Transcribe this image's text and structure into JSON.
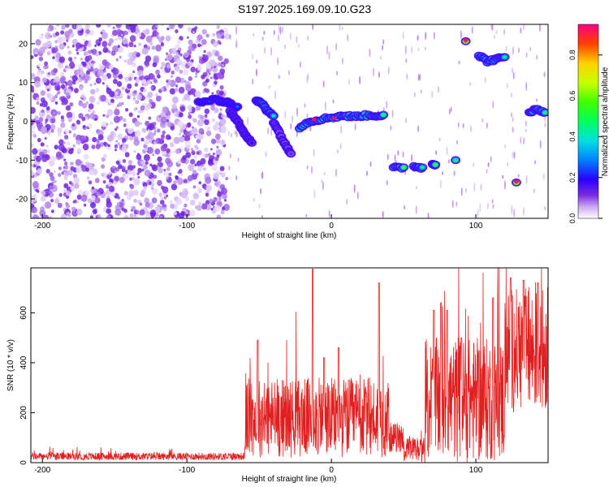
{
  "page": {
    "title": "S197.2025.169.09.10.G23"
  },
  "chart_data": [
    {
      "type": "heatmap",
      "xlabel": "Height of straight line (km)",
      "ylabel": "Frequency (Hz)",
      "xlim": [
        -208,
        150
      ],
      "ylim": [
        -25,
        25
      ],
      "xticks": [
        -200,
        -100,
        0,
        100
      ],
      "yticks": [
        -20,
        -10,
        0,
        10,
        20
      ],
      "colorbar": {
        "label": "Normalized spectral amplitude",
        "range": [
          0,
          0.95
        ],
        "ticks": [
          0.0,
          0.2,
          0.4,
          0.6,
          0.8
        ]
      },
      "background": {
        "noise_region_x": [
          -208,
          -72
        ],
        "noise_level": 0.05
      },
      "tracks": [
        {
          "x": [
            -92,
            -80,
            -72,
            -65
          ],
          "y": [
            5,
            5.5,
            5,
            3.5
          ],
          "amp": 0.3
        },
        {
          "x": [
            -70,
            -65,
            -60,
            -55
          ],
          "y": [
            2.5,
            0,
            -3,
            -5.5
          ],
          "amp": 0.2
        },
        {
          "x": [
            -52,
            -48,
            -44,
            -40
          ],
          "y": [
            5.5,
            4.5,
            2.5,
            1.5
          ],
          "amp": 0.45
        },
        {
          "x": [
            -40,
            -36,
            -32,
            -28
          ],
          "y": [
            0,
            -3,
            -6,
            -8
          ],
          "amp": 0.15
        },
        {
          "x": [
            -22,
            -15,
            -8,
            0,
            8,
            15,
            22,
            30,
            36
          ],
          "y": [
            -1.5,
            0,
            0.5,
            1,
            1.5,
            1.2,
            1.5,
            1.5,
            1.5
          ],
          "amp": 0.55
        },
        {
          "x": [
            43,
            50
          ],
          "y": [
            -12,
            -12
          ],
          "amp": 0.6
        },
        {
          "x": [
            57,
            63
          ],
          "y": [
            -11.5,
            -12
          ],
          "amp": 0.5
        },
        {
          "x": [
            70,
            72
          ],
          "y": [
            -11,
            -11
          ],
          "amp": 0.6
        },
        {
          "x": [
            86
          ],
          "y": [
            -10
          ],
          "amp": 0.55
        },
        {
          "x": [
            93
          ],
          "y": [
            21
          ],
          "amp": 0.9
        },
        {
          "x": [
            102,
            108,
            114,
            120
          ],
          "y": [
            17,
            15.5,
            16,
            16.5
          ],
          "amp": 0.5
        },
        {
          "x": [
            128
          ],
          "y": [
            -15.5
          ],
          "amp": 0.9
        },
        {
          "x": [
            137,
            142,
            148
          ],
          "y": [
            2.5,
            3,
            2.5
          ],
          "amp": 0.55
        }
      ],
      "hot_spots": [
        {
          "x": -12,
          "y": 0.5
        },
        {
          "x": 2,
          "y": 0.8
        },
        {
          "x": 93,
          "y": 21
        },
        {
          "x": 128,
          "y": -15.5
        }
      ]
    },
    {
      "type": "line",
      "xlabel": "Height of straight line (km)",
      "ylabel": "SNR (10 * v/v)",
      "xlim": [
        -208,
        150
      ],
      "ylim": [
        0,
        780
      ],
      "xticks": [
        -200,
        -100,
        0,
        100
      ],
      "yticks": [
        0,
        200,
        400,
        600
      ],
      "color": "#ff0000",
      "segments": [
        {
          "x": [
            -208,
            -60
          ],
          "base": 25,
          "noise": 15
        },
        {
          "x": [
            -60,
            40
          ],
          "base": 180,
          "noise": 160
        },
        {
          "x": [
            40,
            50
          ],
          "base": 100,
          "noise": 60
        },
        {
          "x": [
            50,
            65
          ],
          "base": 50,
          "noise": 50
        },
        {
          "x": [
            65,
            120
          ],
          "base": 250,
          "noise": 250
        },
        {
          "x": [
            120,
            150
          ],
          "base": 450,
          "noise": 250
        }
      ],
      "peaks": [
        {
          "x": -51,
          "y": 490
        },
        {
          "x": -13,
          "y": 775
        },
        {
          "x": -5,
          "y": 420
        },
        {
          "x": 5,
          "y": 460
        },
        {
          "x": 33,
          "y": 720
        },
        {
          "x": 71,
          "y": 610
        },
        {
          "x": 76,
          "y": 640
        },
        {
          "x": 80,
          "y": 610
        },
        {
          "x": 90,
          "y": 500
        },
        {
          "x": 112,
          "y": 660
        },
        {
          "x": 124,
          "y": 740
        },
        {
          "x": 133,
          "y": 730
        },
        {
          "x": 143,
          "y": 720
        },
        {
          "x": 150,
          "y": 700
        }
      ]
    }
  ]
}
